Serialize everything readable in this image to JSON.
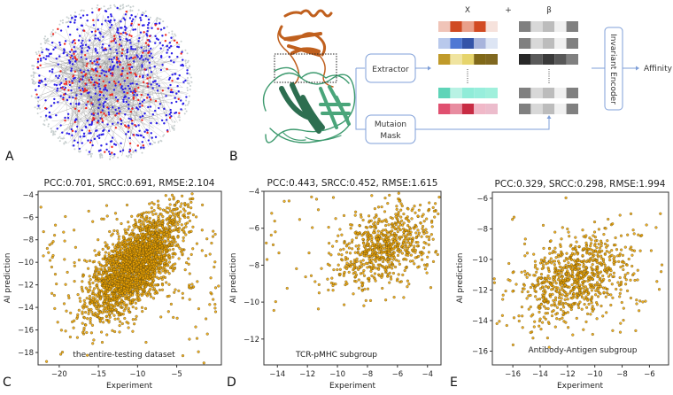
{
  "panels": {
    "a": {
      "letter": "A",
      "colors": {
        "blue_node": "#2a1ee8",
        "red_node": "#f0281e",
        "edge": "#9a9a9a",
        "ring_node": "#c8d0d0"
      }
    },
    "b": {
      "letter": "B",
      "x_label": "X",
      "plus_label": "+",
      "beta_label": "β",
      "extractor_label": "Extractor",
      "mutation_mask_label_line1": "Mutaion",
      "mutation_mask_label_line2": "Mask",
      "encoder_label": "Invariant Encoder",
      "output_label": "Affinity",
      "colors": {
        "arrow": "#7f9fd8",
        "protein_top": "#c0601e",
        "protein_bottom": "#3d9a6e"
      },
      "x_rows": [
        [
          "#f0c4b8",
          "#d04a22",
          "#e9a08a",
          "#d24a22",
          "#f6e2dc"
        ],
        [
          "#b9c9ec",
          "#4f78d4",
          "#3453a8",
          "#a8b4dc",
          "#dde5f4"
        ],
        [
          "#c09a2a",
          "#f0e4a0",
          "#e6d46c",
          "#806818",
          "#806820"
        ],
        [
          "#5fd4b8",
          "#b8f2e4",
          "#90ecd8",
          "#98eedc",
          "#a0f0dc"
        ],
        [
          "#e05070",
          "#e88ca0",
          "#c82c44",
          "#f0b8c8",
          "#ecbccc"
        ]
      ],
      "beta_rows": [
        [
          "#808080",
          "#d8d8d8",
          "#bcbcbc",
          "#f0f0f0",
          "#808080"
        ],
        [
          "#808080",
          "#d8d8d8",
          "#bcbcbc",
          "#f0f0f0",
          "#808080"
        ],
        [
          "#282828",
          "#5a5a5a",
          "#3a3a3a",
          "#585858",
          "#808080"
        ],
        [
          "#808080",
          "#d8d8d8",
          "#bcbcbc",
          "#f0f0f0",
          "#808080"
        ],
        [
          "#808080",
          "#d8d8d8",
          "#bcbcbc",
          "#f0f0f0",
          "#808080"
        ]
      ]
    }
  },
  "chart_data": [
    {
      "letter": "C",
      "type": "scatter",
      "title": "PCC:0.701, SRCC:0.691, RMSE:2.104",
      "xlabel": "Experiment",
      "ylabel": "AI prediction",
      "annotation": "the entire-testing dataset",
      "xlim": [
        -22.7,
        0.7
      ],
      "ylim": [
        -19.1,
        -3.7
      ],
      "xticks": [
        -20,
        -15,
        -10,
        -5
      ],
      "yticks": [
        -18,
        -16,
        -14,
        -12,
        -10,
        -8,
        -6,
        -4
      ],
      "metrics": {
        "pcc": 0.701,
        "srcc": 0.691,
        "rmse": 2.104
      },
      "distribution": {
        "n": 2600,
        "x_mean": -10.3,
        "x_sd": 2.9,
        "y_mean": -10.2,
        "y_sd": 2.3,
        "corr": 0.7,
        "seed": 11
      },
      "point_color": "#f0a500",
      "point_edge": "#5a4510"
    },
    {
      "letter": "D",
      "type": "scatter",
      "title": "PCC:0.443, SRCC:0.452, RMSE:1.615",
      "xlabel": "Experiment",
      "ylabel": "AI prediction",
      "annotation": "TCR-pMHC subgroup",
      "xlim": [
        -14.9,
        -3.1
      ],
      "ylim": [
        -13.4,
        -4.0
      ],
      "xticks": [
        -14,
        -12,
        -10,
        -8,
        -6,
        -4
      ],
      "yticks": [
        -12,
        -10,
        -8,
        -6,
        -4
      ],
      "metrics": {
        "pcc": 0.443,
        "srcc": 0.452,
        "rmse": 1.615
      },
      "distribution": {
        "n": 750,
        "x_mean": -6.9,
        "x_sd": 1.6,
        "y_mean": -7.0,
        "y_sd": 1.15,
        "corr": 0.44,
        "seed": 23
      },
      "point_color": "#f0a500",
      "point_edge": "#5a4510"
    },
    {
      "letter": "E",
      "type": "scatter",
      "title": "PCC:0.329, SRCC:0.298, RMSE:1.994",
      "xlabel": "Experiment",
      "ylabel": "AI prediction",
      "annotation": "Antibody-Antigen subgroup",
      "xlim": [
        -17.5,
        -4.6
      ],
      "ylim": [
        -16.9,
        -5.6
      ],
      "xticks": [
        -16,
        -14,
        -12,
        -10,
        -8,
        -6
      ],
      "yticks": [
        -16,
        -14,
        -12,
        -10,
        -8,
        -6
      ],
      "metrics": {
        "pcc": 0.329,
        "srcc": 0.298,
        "rmse": 1.994
      },
      "distribution": {
        "n": 850,
        "x_mean": -11.4,
        "x_sd": 2.0,
        "y_mean": -11.2,
        "y_sd": 1.5,
        "corr": 0.33,
        "seed": 37
      },
      "point_color": "#f0a500",
      "point_edge": "#5a4510"
    }
  ]
}
